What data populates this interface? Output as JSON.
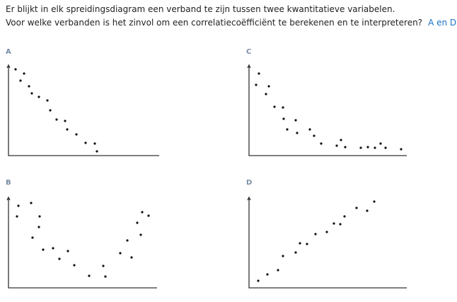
{
  "question": {
    "line1": "Er blijkt in elk spreidingsdiagram een verband te zijn tussen twee kwantitatieve variabelen.",
    "line2": "Voor welke verbanden is het zinvol om een correlatiecoëfficiënt te berekenen en te interpreteren?",
    "answer": "A en D"
  },
  "plots": [
    {
      "label": "A"
    },
    {
      "label": "C"
    },
    {
      "label": "B"
    },
    {
      "label": "D"
    }
  ]
}
